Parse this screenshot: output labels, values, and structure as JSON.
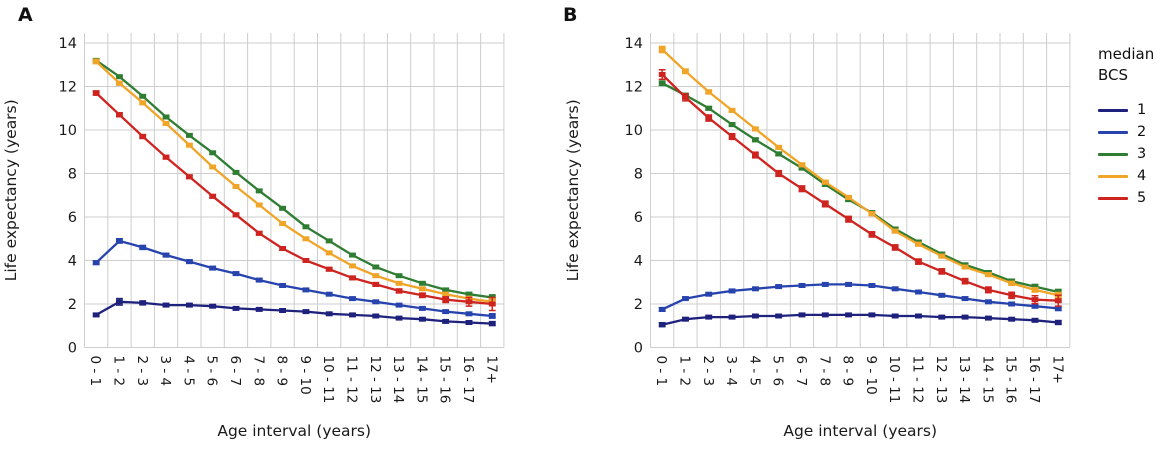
{
  "figure": {
    "panels": [
      {
        "label": "A",
        "xlabel": "Age interval (years)",
        "ylabel": "Life expectancy (years)"
      },
      {
        "label": "B",
        "xlabel": "Age interval (years)",
        "ylabel": "Life expectancy (years)"
      }
    ],
    "legend": {
      "title_line1": "median",
      "title_line2": "BCS",
      "items": [
        {
          "label": "1",
          "color": "#1E227D"
        },
        {
          "label": "2",
          "color": "#2743AE"
        },
        {
          "label": "3",
          "color": "#2E7D32"
        },
        {
          "label": "4",
          "color": "#F0A428"
        },
        {
          "label": "5",
          "color": "#CE2420"
        }
      ]
    },
    "colors": {
      "gridline": "#cdcdcd",
      "text": "#1a1a1a",
      "background": "#ffffff"
    }
  },
  "chart_data": [
    {
      "type": "line",
      "panel": "A",
      "title": "",
      "xlabel": "Age interval (years)",
      "ylabel": "Life expectancy (years)",
      "ylim": [
        0,
        14
      ],
      "yticks": [
        0,
        2,
        4,
        6,
        8,
        10,
        12,
        14
      ],
      "grid": true,
      "legend_position": "right",
      "categories": [
        "0 - 1",
        "1 - 2",
        "2 - 3",
        "3 - 4",
        "4 - 5",
        "5 - 6",
        "6 - 7",
        "7 - 8",
        "8 - 9",
        "9 - 10",
        "10 - 11",
        "11 - 12",
        "12 - 13",
        "13 - 14",
        "14 - 15",
        "15 - 16",
        "16 - 17",
        "17+"
      ],
      "series": [
        {
          "name": "1",
          "color": "#1E227D",
          "values": [
            1.5,
            2.1,
            2.05,
            1.95,
            1.95,
            1.9,
            1.8,
            1.75,
            1.7,
            1.65,
            1.55,
            1.5,
            1.45,
            1.35,
            1.3,
            1.2,
            1.15,
            1.1
          ],
          "errors": [
            0.07,
            0.15,
            0.09,
            0.07,
            0.07,
            0.07,
            0.06,
            0.06,
            0.06,
            0.05,
            0.05,
            0.05,
            0.05,
            0.05,
            0.05,
            0.06,
            0.07,
            0.09
          ]
        },
        {
          "name": "2",
          "color": "#2743AE",
          "values": [
            3.9,
            4.9,
            4.6,
            4.25,
            3.95,
            3.65,
            3.4,
            3.1,
            2.85,
            2.65,
            2.45,
            2.25,
            2.1,
            1.95,
            1.8,
            1.65,
            1.55,
            1.45
          ],
          "errors": [
            0.08,
            0.1,
            0.09,
            0.08,
            0.08,
            0.07,
            0.07,
            0.07,
            0.06,
            0.06,
            0.06,
            0.06,
            0.06,
            0.06,
            0.06,
            0.06,
            0.07,
            0.1
          ]
        },
        {
          "name": "3",
          "color": "#2E7D32",
          "values": [
            13.2,
            12.45,
            11.55,
            10.6,
            9.75,
            8.95,
            8.05,
            7.2,
            6.4,
            5.55,
            4.9,
            4.25,
            3.7,
            3.3,
            2.95,
            2.65,
            2.45,
            2.3
          ],
          "errors": [
            0.06,
            0.06,
            0.06,
            0.06,
            0.06,
            0.06,
            0.06,
            0.06,
            0.06,
            0.06,
            0.06,
            0.06,
            0.06,
            0.06,
            0.06,
            0.07,
            0.08,
            0.12
          ]
        },
        {
          "name": "4",
          "color": "#F0A428",
          "values": [
            13.15,
            12.15,
            11.25,
            10.3,
            9.3,
            8.3,
            7.4,
            6.55,
            5.7,
            5.0,
            4.35,
            3.75,
            3.3,
            2.95,
            2.7,
            2.45,
            2.25,
            2.1
          ],
          "errors": [
            0.1,
            0.08,
            0.07,
            0.07,
            0.07,
            0.07,
            0.06,
            0.06,
            0.06,
            0.06,
            0.06,
            0.06,
            0.06,
            0.06,
            0.07,
            0.08,
            0.1,
            0.15
          ]
        },
        {
          "name": "5",
          "color": "#CE2420",
          "values": [
            11.7,
            10.7,
            9.7,
            8.75,
            7.85,
            6.95,
            6.1,
            5.25,
            4.55,
            4.0,
            3.6,
            3.2,
            2.9,
            2.6,
            2.4,
            2.2,
            2.1,
            2.0
          ],
          "errors": [
            0.1,
            0.09,
            0.09,
            0.08,
            0.08,
            0.08,
            0.08,
            0.08,
            0.08,
            0.08,
            0.08,
            0.08,
            0.08,
            0.09,
            0.1,
            0.13,
            0.2,
            0.3
          ]
        }
      ]
    },
    {
      "type": "line",
      "panel": "B",
      "title": "",
      "xlabel": "Age interval (years)",
      "ylabel": "Life expectancy (years)",
      "ylim": [
        0,
        14
      ],
      "yticks": [
        0,
        2,
        4,
        6,
        8,
        10,
        12,
        14
      ],
      "grid": true,
      "legend_position": "right",
      "categories": [
        "0 - 1",
        "1 - 2",
        "2 - 3",
        "3 - 4",
        "4 - 5",
        "5 - 6",
        "6 - 7",
        "7 - 8",
        "8 - 9",
        "9 - 10",
        "10 - 11",
        "11 - 12",
        "12 - 13",
        "13 - 14",
        "14 - 15",
        "15 - 16",
        "16 - 17",
        "17+"
      ],
      "series": [
        {
          "name": "1",
          "color": "#1E227D",
          "values": [
            1.05,
            1.3,
            1.4,
            1.4,
            1.45,
            1.45,
            1.5,
            1.5,
            1.5,
            1.5,
            1.45,
            1.45,
            1.4,
            1.4,
            1.35,
            1.3,
            1.25,
            1.15
          ],
          "errors": [
            0.09,
            0.07,
            0.06,
            0.06,
            0.06,
            0.06,
            0.06,
            0.06,
            0.06,
            0.06,
            0.06,
            0.06,
            0.06,
            0.06,
            0.06,
            0.06,
            0.07,
            0.09
          ]
        },
        {
          "name": "2",
          "color": "#2743AE",
          "values": [
            1.75,
            2.25,
            2.45,
            2.6,
            2.7,
            2.8,
            2.85,
            2.9,
            2.9,
            2.85,
            2.7,
            2.55,
            2.4,
            2.25,
            2.1,
            2.0,
            1.9,
            1.8
          ],
          "errors": [
            0.08,
            0.07,
            0.07,
            0.07,
            0.07,
            0.07,
            0.07,
            0.07,
            0.07,
            0.07,
            0.07,
            0.07,
            0.07,
            0.07,
            0.07,
            0.07,
            0.08,
            0.1
          ]
        },
        {
          "name": "3",
          "color": "#2E7D32",
          "values": [
            12.15,
            11.6,
            11.0,
            10.25,
            9.55,
            8.9,
            8.25,
            7.5,
            6.8,
            6.2,
            5.45,
            4.85,
            4.3,
            3.8,
            3.45,
            3.05,
            2.8,
            2.55
          ],
          "errors": [
            0.1,
            0.08,
            0.08,
            0.08,
            0.08,
            0.08,
            0.08,
            0.08,
            0.08,
            0.08,
            0.08,
            0.08,
            0.08,
            0.08,
            0.08,
            0.09,
            0.1,
            0.12
          ]
        },
        {
          "name": "4",
          "color": "#F0A428",
          "values": [
            13.7,
            12.7,
            11.75,
            10.9,
            10.05,
            9.2,
            8.4,
            7.6,
            6.9,
            6.15,
            5.35,
            4.75,
            4.2,
            3.7,
            3.35,
            2.95,
            2.65,
            2.4
          ],
          "errors": [
            0.14,
            0.1,
            0.09,
            0.08,
            0.08,
            0.08,
            0.08,
            0.08,
            0.08,
            0.08,
            0.08,
            0.08,
            0.08,
            0.08,
            0.08,
            0.09,
            0.1,
            0.13
          ]
        },
        {
          "name": "5",
          "color": "#CE2420",
          "values": [
            12.55,
            11.5,
            10.55,
            9.7,
            8.85,
            8.0,
            7.3,
            6.6,
            5.9,
            5.2,
            4.6,
            3.95,
            3.5,
            3.05,
            2.65,
            2.4,
            2.2,
            2.15
          ],
          "errors": [
            0.22,
            0.16,
            0.14,
            0.13,
            0.13,
            0.13,
            0.13,
            0.13,
            0.13,
            0.12,
            0.12,
            0.12,
            0.12,
            0.12,
            0.13,
            0.14,
            0.18,
            0.25
          ]
        }
      ]
    }
  ]
}
